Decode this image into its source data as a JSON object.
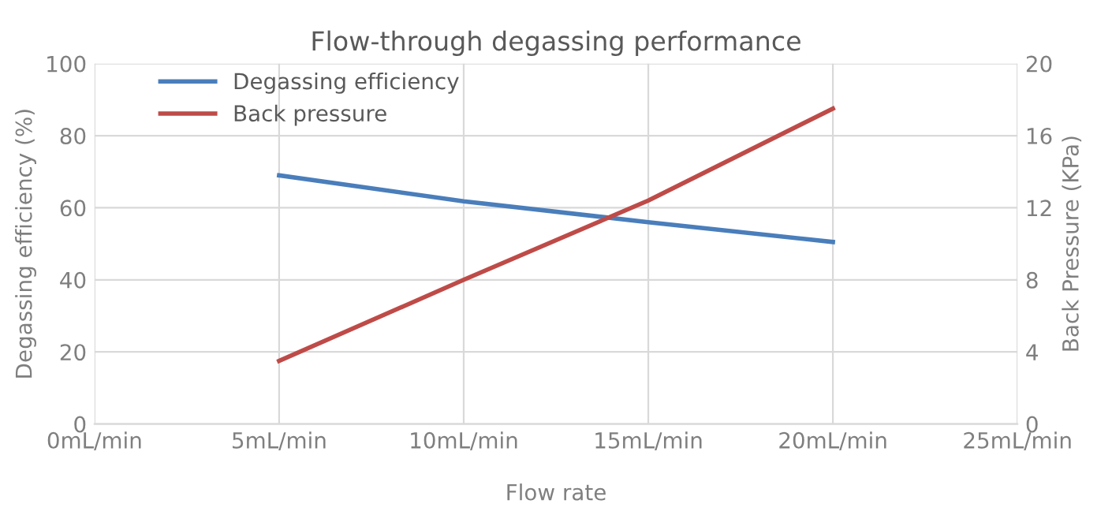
{
  "chart_data": {
    "type": "line",
    "title": "Flow-through degassing performance",
    "xlabel": "Flow rate",
    "ylabel": "Degassing efficiency (%)",
    "y2label": "Back Pressure (KPa)",
    "x": [
      5,
      10,
      15,
      20
    ],
    "xlim": [
      0,
      25
    ],
    "xticks": [
      {
        "value": 0,
        "label": "0mL/min"
      },
      {
        "value": 5,
        "label": "5mL/min"
      },
      {
        "value": 10,
        "label": "10mL/min"
      },
      {
        "value": 15,
        "label": "15mL/min"
      },
      {
        "value": 20,
        "label": "20mL/min"
      },
      {
        "value": 25,
        "label": "25mL/min"
      }
    ],
    "ylim": [
      0,
      100
    ],
    "yticks": [
      0,
      20,
      40,
      60,
      80,
      100
    ],
    "y2lim": [
      0,
      20
    ],
    "y2ticks": [
      0,
      4,
      8,
      12,
      16,
      20
    ],
    "series": [
      {
        "name": "Degassing efficiency",
        "color": "#4a7ebb",
        "values": [
          69,
          61.8,
          56,
          50.5
        ]
      },
      {
        "name": "Back pressure",
        "color": "#be4b48",
        "values": [
          3.5,
          8,
          12.4,
          17.5
        ],
        "axis": "y2"
      }
    ],
    "grid": true,
    "legend": "top left",
    "marker": "none",
    "line_style": "solid"
  }
}
